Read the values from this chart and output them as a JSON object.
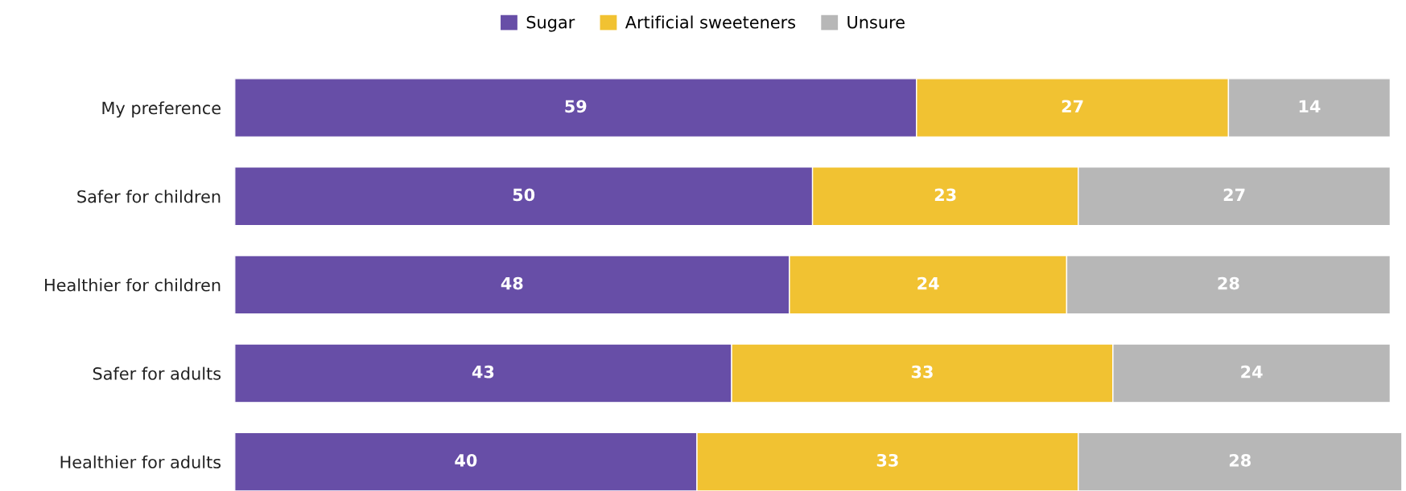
{
  "chart_data": {
    "type": "bar",
    "orientation": "horizontal",
    "stacked": true,
    "data_labels": true,
    "legend": "top",
    "grid": false,
    "categories": [
      "My preference",
      "Safer for children",
      "Healthier for children",
      "Safer for adults",
      "Healthier for adults"
    ],
    "series": [
      {
        "name": "Sugar",
        "color": "#674ea7",
        "values": [
          59,
          50,
          48,
          43,
          40
        ]
      },
      {
        "name": "Artificial sweeteners",
        "color": "#f1c232",
        "values": [
          27,
          23,
          24,
          33,
          33
        ]
      },
      {
        "name": "Unsure",
        "color": "#b7b7b7",
        "values": [
          14,
          27,
          28,
          24,
          28
        ]
      }
    ]
  }
}
